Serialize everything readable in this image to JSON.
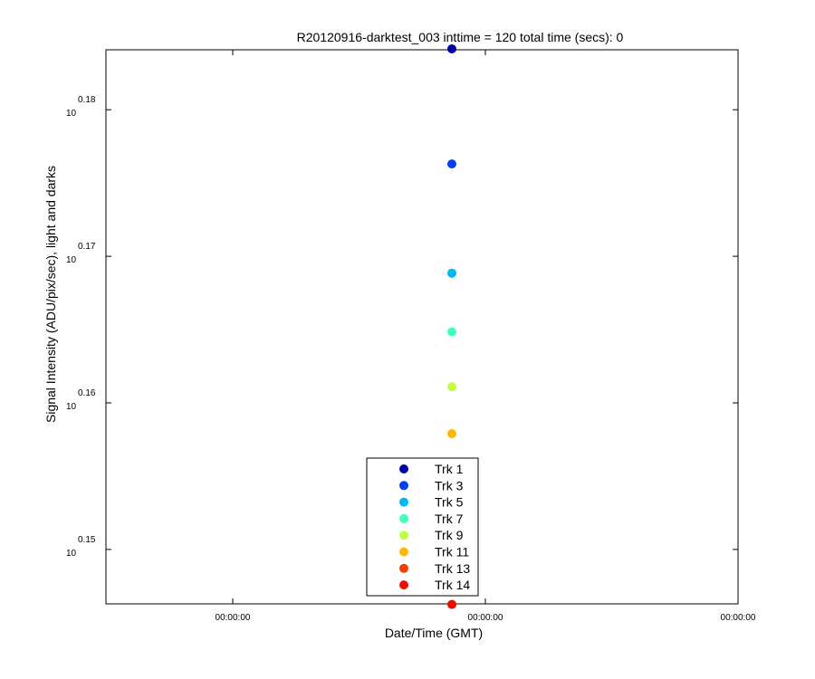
{
  "chart_data": {
    "type": "scatter",
    "title": "R20120916-darktest_003 inttime = 120 total time (secs): 0",
    "xlabel": "Date/Time (GMT)",
    "ylabel": "Signal Intensity (ADU/pix/sec), light and darks",
    "y_scale": "log10",
    "y_tick_exponents": [
      "0.15",
      "0.16",
      "0.17",
      "0.18"
    ],
    "y_tick_base": "10",
    "x_tick_labels": [
      "00:00:00",
      "00:00:00",
      "00:00:00"
    ],
    "grid": false,
    "legend_position": "bottom-center",
    "series": [
      {
        "name": "Trk 1",
        "color": "#0000a8",
        "y_exponent": 0.18415
      },
      {
        "name": "Trk 3",
        "color": "#0040ee",
        "y_exponent": 0.1763
      },
      {
        "name": "Trk 5",
        "color": "#00b8f0",
        "y_exponent": 0.16885
      },
      {
        "name": "Trk 7",
        "color": "#40ffc0",
        "y_exponent": 0.16485
      },
      {
        "name": "Trk 9",
        "color": "#c0ff40",
        "y_exponent": 0.1611
      },
      {
        "name": "Trk 11",
        "color": "#ffb800",
        "y_exponent": 0.1579
      },
      {
        "name": "Trk 13",
        "color": "#f04000",
        "y_exponent": 0.14625
      },
      {
        "name": "Trk 14",
        "color": "#e81000",
        "y_exponent": 0.14625
      }
    ]
  }
}
